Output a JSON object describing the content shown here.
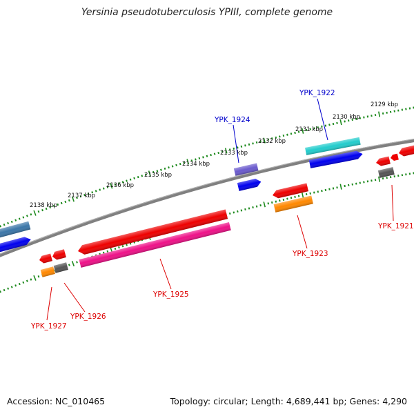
{
  "title": "Yersinia pseudotuberculosis YPIII, complete genome",
  "accession": "Accession: NC_010465",
  "summary": "Topology: circular; Length: 4,689,441 bp; Genes: 4,290",
  "scale_labels": [
    "2129 kbp",
    "2130 kbp",
    "2131 kbp",
    "2132 kbp",
    "2133 kbp",
    "2134 kbp",
    "2135 kbp",
    "2136 kbp",
    "2137 kbp",
    "2138 kbp"
  ],
  "gene_labels": {
    "ypk1921": "YPK_1921",
    "ypk1922": "YPK_1922",
    "ypk1923": "YPK_1923",
    "ypk1924": "YPK_1924",
    "ypk1925": "YPK_1925",
    "ypk1926": "YPK_1926",
    "ypk1927": "YPK_1927"
  },
  "colors": {
    "forward_label": "#0000cc",
    "reverse_label": "#dd0000",
    "backbone": "#808080",
    "ticks": "#1e8a1e",
    "red": "#ee0000",
    "blue": "#0000ee",
    "cyan": "#22cccc",
    "magenta": "#ee1188",
    "orange": "#ff8800",
    "gray": "#555555",
    "slate": "#3b76a8",
    "violet": "#6a5acd"
  }
}
